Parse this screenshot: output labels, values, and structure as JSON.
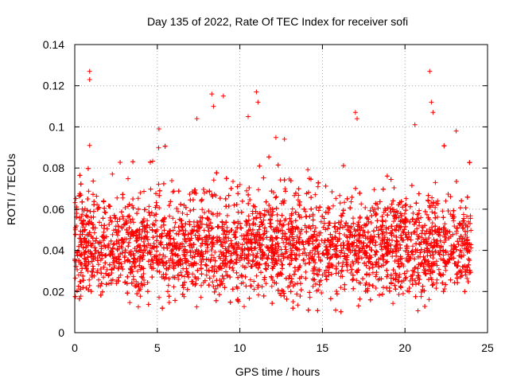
{
  "chart_data": {
    "type": "scatter",
    "title": "Day 135 of 2022, Rate Of TEC Index for receiver sofi",
    "xlabel": "GPS time / hours",
    "ylabel": "ROTI / TECUs",
    "xlim": [
      0,
      25
    ],
    "ylim": [
      0,
      0.14
    ],
    "xticks": [
      0,
      5,
      10,
      15,
      20,
      25
    ],
    "yticks": [
      0,
      0.02,
      0.04,
      0.06,
      0.08,
      0.1,
      0.12,
      0.14
    ],
    "xtick_labels": [
      "0",
      "5",
      "10",
      "15",
      "20",
      "25"
    ],
    "ytick_labels": [
      "0",
      "0.02",
      "0.04",
      "0.06",
      "0.08",
      "0.1",
      "0.12",
      "0.14"
    ],
    "grid": true,
    "marker": "+",
    "series_color": "#ff0000",
    "data_range_x": [
      0,
      24
    ],
    "typical_band_y": [
      0.02,
      0.07
    ],
    "median_y": 0.042,
    "outliers": [
      {
        "x": 0.9,
        "y": 0.127
      },
      {
        "x": 0.9,
        "y": 0.123
      },
      {
        "x": 0.9,
        "y": 0.091
      },
      {
        "x": 5.1,
        "y": 0.099
      },
      {
        "x": 7.4,
        "y": 0.104
      },
      {
        "x": 8.3,
        "y": 0.116
      },
      {
        "x": 8.4,
        "y": 0.11
      },
      {
        "x": 9.0,
        "y": 0.115
      },
      {
        "x": 10.5,
        "y": 0.105
      },
      {
        "x": 11.0,
        "y": 0.117
      },
      {
        "x": 11.1,
        "y": 0.112
      },
      {
        "x": 12.7,
        "y": 0.094
      },
      {
        "x": 17.0,
        "y": 0.107
      },
      {
        "x": 17.1,
        "y": 0.104
      },
      {
        "x": 20.6,
        "y": 0.101
      },
      {
        "x": 21.5,
        "y": 0.127
      },
      {
        "x": 21.6,
        "y": 0.112
      },
      {
        "x": 21.7,
        "y": 0.107
      },
      {
        "x": 23.1,
        "y": 0.098
      }
    ]
  }
}
